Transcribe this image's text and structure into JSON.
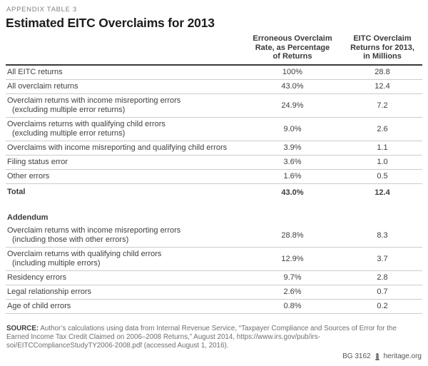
{
  "eyebrow": "APPENDIX TABLE 3",
  "title": "Estimated EITC Overclaims for 2013",
  "table": {
    "headers": {
      "rate": "Erroneous Overclaim\nRate, as Percentage\nof Returns",
      "returns": "EITC Overclaim\nReturns for 2013,\nin Millions"
    },
    "rows": [
      {
        "label": "All EITC returns",
        "rate": "100%",
        "returns": "28.8"
      },
      {
        "label": "All overclaim returns",
        "rate": "43.0%",
        "returns": "12.4"
      },
      {
        "label": "Overclaim returns with income misreporting errors",
        "sublabel": "(excluding multiple error returns)",
        "rate": "24.9%",
        "returns": "7.2"
      },
      {
        "label": "Overclaims returns with qualifying child errors",
        "sublabel": "(excluding multiple error returns)",
        "rate": "9.0%",
        "returns": "2.6"
      },
      {
        "label": "Overclaims with income misreporting and qualifying child errors",
        "rate": "3.9%",
        "returns": "1.1"
      },
      {
        "label": "Filing status error",
        "rate": "3.6%",
        "returns": "1.0"
      },
      {
        "label": "Other errors",
        "rate": "1.6%",
        "returns": "0.5"
      },
      {
        "label": "Total",
        "rate": "43.0%",
        "returns": "12.4",
        "style": "total"
      }
    ],
    "addendum_heading": "Addendum",
    "addendum_rows": [
      {
        "label": "Overclaim returns with income misreporting errors",
        "sublabel": "(including those with other errors)",
        "rate": "28.8%",
        "returns": "8.3"
      },
      {
        "label": "Overclaim returns with qualifying child errors",
        "sublabel": "(including multiple errors)",
        "rate": "12.9%",
        "returns": "3.7"
      },
      {
        "label": "Residency errors",
        "rate": "9.7%",
        "returns": "2.8"
      },
      {
        "label": "Legal relationship errors",
        "rate": "2.6%",
        "returns": "0.7"
      },
      {
        "label": "Age of child errors",
        "rate": "0.8%",
        "returns": "0.2"
      }
    ]
  },
  "source": {
    "label": "SOURCE:",
    "text": " Author’s calculations using data from Internal Revenue Service, “Taxpayer Compliance and Sources of Error for the Earned Income Tax Credit Claimed on 2006–2008 Returns,” August 2014, https://www.irs.gov/pub/irs-soi/EITCComplianceStudyTY2006-2008.pdf (accessed August 1, 2016)."
  },
  "footer": {
    "report_id": "BG 3162",
    "site": "heritage.org"
  },
  "colors": {
    "heavy_rule": "#39393b",
    "light_rule": "#cccccc",
    "body_text": "#414042",
    "muted_text": "#6f6f72",
    "eyebrow_text": "#808083"
  }
}
